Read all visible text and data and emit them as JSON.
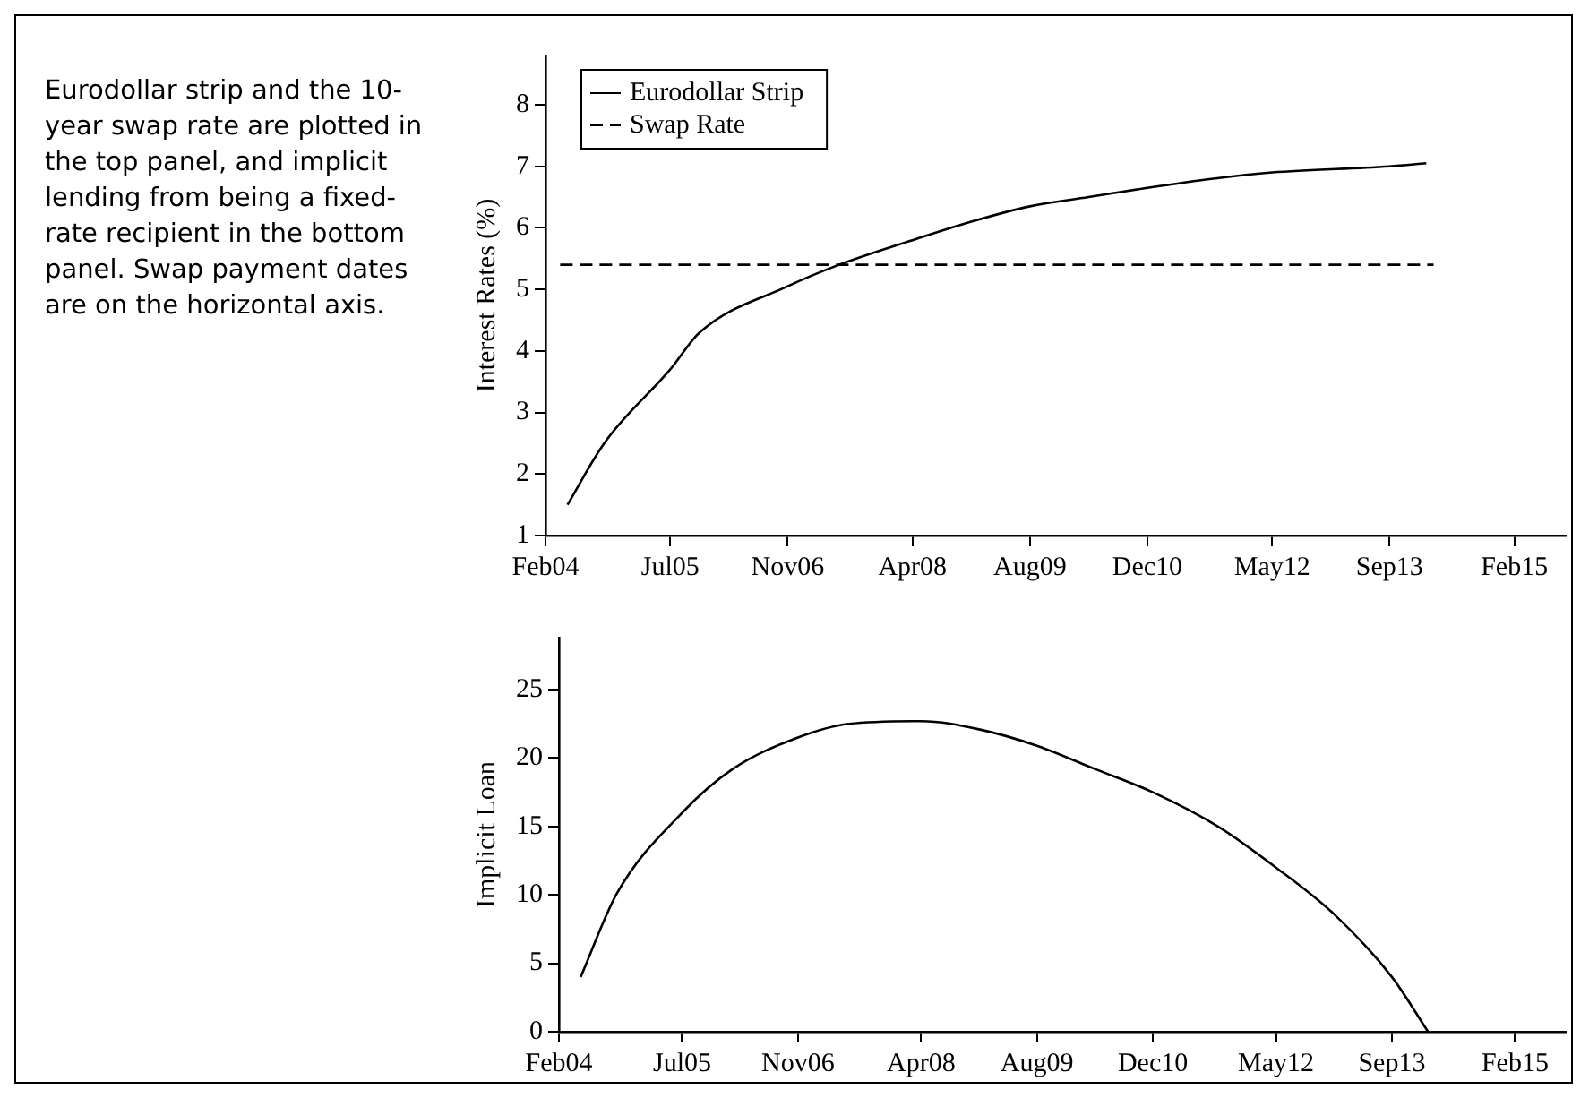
{
  "chart_data": [
    {
      "type": "line",
      "ylabel": "Interest Rates (%)",
      "annotations": [
        "Eurodollar strip and the 10-year swap rate are plotted in the top panel, and implicit lending from being a fixed-rate recipient in the bottom panel. Swap payment dates are on the horizontal axis."
      ],
      "series": [
        {
          "name": "Eurodollar Strip",
          "color": "#000000",
          "line_style": "solid",
          "x": [
            "2004-05",
            "2004-10",
            "2005-07",
            "2005-11",
            "2006-11",
            "2007-06",
            "2008-04",
            "2008-12",
            "2009-08",
            "2010-04",
            "2010-12",
            "2011-09",
            "2012-05",
            "2013-09",
            "2014-02"
          ],
          "values": [
            1.5,
            2.5,
            3.7,
            4.3,
            5.05,
            5.4,
            5.8,
            6.1,
            6.35,
            6.5,
            6.65,
            6.8,
            6.9,
            7.0,
            7.05
          ]
        },
        {
          "name": "Swap Rate",
          "color": "#000000",
          "line_style": "dashed",
          "x": [
            "2004-04",
            "2014-03"
          ],
          "values": [
            5.4,
            5.4
          ]
        }
      ],
      "xlim": [
        "2004-02",
        "2015-09"
      ],
      "xticks": [
        {
          "value": "2004-02",
          "label": "Feb04"
        },
        {
          "value": "2005-07",
          "label": "Jul05"
        },
        {
          "value": "2006-11",
          "label": "Nov06"
        },
        {
          "value": "2008-04",
          "label": "Apr08"
        },
        {
          "value": "2009-08",
          "label": "Aug09"
        },
        {
          "value": "2010-12",
          "label": "Dec10"
        },
        {
          "value": "2012-05",
          "label": "May12"
        },
        {
          "value": "2013-09",
          "label": "Sep13"
        },
        {
          "value": "2015-02",
          "label": "Feb15"
        }
      ],
      "ylim": [
        1,
        8.8
      ],
      "yticks": [
        1,
        2,
        3,
        4,
        5,
        6,
        7,
        8
      ],
      "legend": "top left",
      "grid": false
    },
    {
      "type": "line",
      "ylabel": "Implicit Loan",
      "series": [
        {
          "color": "#000000",
          "x": [
            "2004-05",
            "2004-10",
            "2005-07",
            "2006-02",
            "2006-11",
            "2007-06",
            "2008-04",
            "2008-12",
            "2009-08",
            "2010-04",
            "2010-12",
            "2011-09",
            "2012-05",
            "2013-01",
            "2013-09",
            "2014-02"
          ],
          "values": [
            4,
            10.1,
            16,
            19.2,
            21.5,
            22.5,
            22.7,
            22.1,
            20.9,
            19.2,
            17.5,
            15,
            12,
            8.6,
            4,
            0
          ]
        }
      ],
      "xlim": [
        "2004-02",
        "2015-09"
      ],
      "xticks": [
        {
          "value": "2004-02",
          "label": "Feb04"
        },
        {
          "value": "2005-07",
          "label": "Jul05"
        },
        {
          "value": "2006-11",
          "label": "Nov06"
        },
        {
          "value": "2008-04",
          "label": "Apr08"
        },
        {
          "value": "2009-08",
          "label": "Aug09"
        },
        {
          "value": "2010-12",
          "label": "Dec10"
        },
        {
          "value": "2012-05",
          "label": "May12"
        },
        {
          "value": "2013-09",
          "label": "Sep13"
        },
        {
          "value": "2015-02",
          "label": "Feb15"
        }
      ],
      "ylim": [
        0,
        28.8
      ],
      "yticks": [
        0,
        5,
        10,
        15,
        20,
        25
      ],
      "grid": false
    }
  ]
}
